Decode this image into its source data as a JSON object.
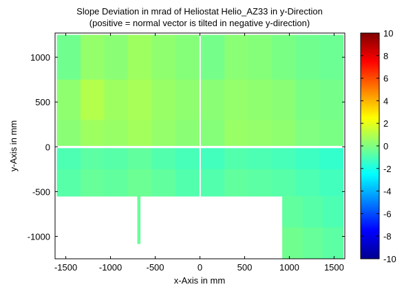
{
  "chart_data": {
    "type": "heatmap",
    "title_lines": [
      "Slope Deviation in mrad of Heliostat Helio_AZ33 in y-Direction",
      "(positive = normal vector is tilted in negative y-direction)"
    ],
    "xlabel": "x-Axis in mm",
    "ylabel": "y-Axis in mm",
    "xlim": [
      -1620,
      1620
    ],
    "ylim": [
      -1250,
      1270
    ],
    "x_ticks": [
      -1500,
      -1000,
      -500,
      0,
      500,
      1000,
      1500
    ],
    "x_tick_labels": [
      "-1500",
      "-1000",
      "-500",
      "0",
      "500",
      "1000",
      "1500"
    ],
    "y_ticks": [
      -1000,
      -500,
      0,
      500,
      1000
    ],
    "y_tick_labels": [
      "-1000",
      "-500",
      "0",
      "500",
      "1000"
    ],
    "colorbar": {
      "colormap": "jet",
      "range": [
        -10,
        10
      ],
      "ticks": [
        10,
        8,
        6,
        4,
        2,
        0,
        -2,
        -4,
        -6,
        -8,
        -10
      ],
      "tick_labels": [
        "10",
        "8",
        "6",
        "4",
        "2",
        "0",
        "-2",
        "-4",
        "-6",
        "-8",
        "-10"
      ]
    },
    "facets": [
      {
        "name": "upper-left",
        "x_range": [
          -1600,
          -10
        ],
        "y_range": [
          15,
          1250
        ],
        "row_y": [
          1250,
          750,
          300,
          15
        ],
        "values_by_row": [
          [
            -0.3,
            0.4,
            0.2,
            0.6,
            0.3,
            0.1
          ],
          [
            0.3,
            1.0,
            0.6,
            0.8,
            0.5,
            0.3
          ],
          [
            0.2,
            0.6,
            0.5,
            0.7,
            0.4,
            0.2
          ],
          [
            1.3,
            1.5,
            1.2,
            1.4,
            1.1,
            1.2
          ]
        ]
      },
      {
        "name": "upper-right",
        "x_range": [
          10,
          1600
        ],
        "y_range": [
          15,
          1250
        ],
        "row_y": [
          1250,
          750,
          300,
          15
        ],
        "values_by_row": [
          [
            -0.2,
            0.2,
            0.1,
            -0.1,
            -0.3,
            -0.4
          ],
          [
            0.2,
            0.4,
            0.3,
            0.2,
            -0.1,
            -0.2
          ],
          [
            0.1,
            0.5,
            0.4,
            0.3,
            0.0,
            -0.1
          ],
          [
            1.1,
            1.3,
            1.2,
            1.0,
            0.8,
            0.6
          ]
        ]
      },
      {
        "name": "lower-left",
        "x_range": [
          -1600,
          -10
        ],
        "y_range": [
          -550,
          -15
        ],
        "row_y": [
          -15,
          -250,
          -550
        ],
        "values_by_row": [
          [
            -1.0,
            -0.7,
            -0.8,
            -0.6,
            -0.9,
            -1.1
          ],
          [
            -0.8,
            -0.5,
            -0.6,
            -0.4,
            -0.6,
            -0.9
          ],
          [
            -0.7,
            -0.4,
            -0.3,
            -0.5,
            -0.4,
            -0.6
          ]
        ]
      },
      {
        "name": "lower-right",
        "x_range": [
          10,
          1600
        ],
        "y_range": [
          -550,
          -15
        ],
        "row_y": [
          -15,
          -250,
          -550
        ],
        "values_by_row": [
          [
            -1.2,
            -0.9,
            -1.0,
            -1.1,
            -1.3,
            -1.5
          ],
          [
            -0.9,
            -0.6,
            -0.7,
            -0.8,
            -1.0,
            -1.2
          ],
          [
            -0.6,
            -0.4,
            -0.5,
            -0.6,
            -0.8,
            -1.0
          ]
        ]
      },
      {
        "name": "lower-right-extension",
        "x_range": [
          920,
          1600
        ],
        "y_range": [
          -1250,
          -550
        ],
        "row_y": [
          -550,
          -900,
          -1250
        ],
        "values_by_row": [
          [
            -0.6,
            -0.8,
            -1.0
          ],
          [
            -0.3,
            -0.5,
            -0.7
          ],
          [
            -0.1,
            -0.3,
            -0.5
          ]
        ]
      },
      {
        "name": "narrow-strip",
        "x_range": [
          -700,
          -670
        ],
        "y_range": [
          -1080,
          -550
        ],
        "row_y": [
          -550,
          -1080
        ],
        "values_by_row": [
          [
            -0.5,
            -0.5
          ],
          [
            -0.3,
            -0.3
          ]
        ]
      }
    ]
  }
}
